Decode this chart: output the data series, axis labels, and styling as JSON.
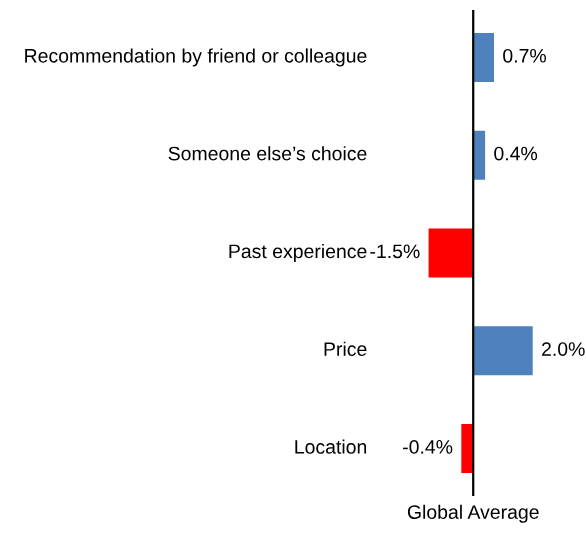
{
  "chart_data": {
    "type": "bar",
    "orientation": "horizontal",
    "xlabel": "Global Average",
    "categories": [
      "Recommendation by friend or colleague",
      "Someone else’s choice",
      "Past experience",
      "Price",
      "Location"
    ],
    "values": [
      0.7,
      0.4,
      -1.5,
      2.0,
      -0.4
    ],
    "colors": [
      "#4f81bd",
      "#4f81bd",
      "#ff0000",
      "#4f81bd",
      "#ff0000"
    ],
    "value_labels": [
      "0.7%",
      "0.4%",
      "-1.5%",
      "2.0%",
      "-0.4%"
    ]
  }
}
